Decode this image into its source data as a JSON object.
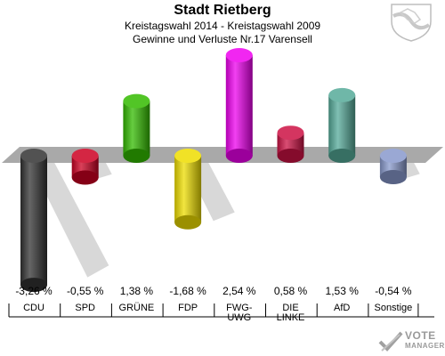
{
  "header": {
    "title": "Stadt Rietberg",
    "subtitle": "Kreistagswahl 2014 - Kreistagswahl 2009",
    "subtitle2": "Gewinne und Verluste Nr.17 Varensell"
  },
  "logo": {
    "line1": "VOTE",
    "line2": "MANAGER"
  },
  "chart_data": {
    "type": "bar",
    "title": "Stadt Rietberg",
    "categories": [
      "CDU",
      "SPD",
      "GRÜNE",
      "FDP",
      "FWG-\nUWG",
      "DIE\nLINKE",
      "AfD",
      "Sonstige"
    ],
    "values": [
      -3.26,
      -0.55,
      1.38,
      -1.68,
      2.54,
      0.58,
      1.53,
      -0.54
    ],
    "value_labels": [
      "-3,26 %",
      "-0,55 %",
      "1,38 %",
      "-1,68 %",
      "2,54 %",
      "0,58 %",
      "1,53 %",
      "-0,54 %"
    ],
    "colors": [
      "#333333",
      "#cc0022",
      "#33bb00",
      "#eedd00",
      "#ee00ee",
      "#cc1144",
      "#55aa99",
      "#8899cc"
    ],
    "ylim": [
      -3.5,
      3.0
    ],
    "grid": false,
    "legend": "none"
  }
}
